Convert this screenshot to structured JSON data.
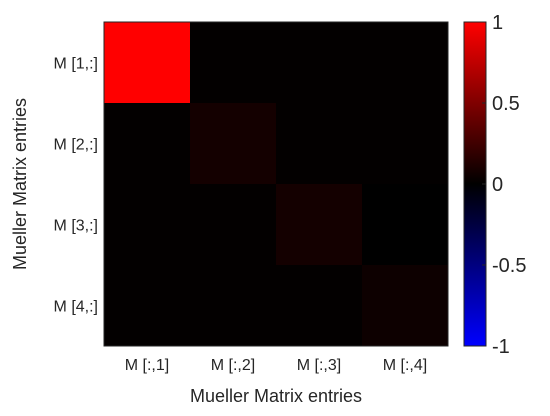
{
  "chart_data": {
    "type": "heatmap",
    "xlabel": "Mueller Matrix entries",
    "ylabel": "Mueller Matrix entries",
    "x_categories": [
      "M [:,1]",
      "M [:,2]",
      "M [:,3]",
      "M [:,4]"
    ],
    "y_categories": [
      "M [1,:]",
      "M [2,:]",
      "M [3,:]",
      "M [4,:]"
    ],
    "values": [
      [
        1.0,
        0.01,
        0.01,
        0.01
      ],
      [
        0.01,
        0.08,
        0.01,
        0.01
      ],
      [
        0.01,
        0.01,
        0.08,
        0.0
      ],
      [
        0.01,
        0.01,
        0.01,
        0.05
      ]
    ],
    "colorbar": {
      "range": [
        -1,
        1
      ],
      "ticks": [
        1,
        0.5,
        0,
        -0.5,
        -1
      ],
      "tick_labels": [
        "1",
        "0.5",
        "0",
        "-0.5",
        "-1"
      ],
      "colors": {
        "max": "#ff0000",
        "zero": "#000000",
        "min": "#0000ff"
      }
    }
  }
}
